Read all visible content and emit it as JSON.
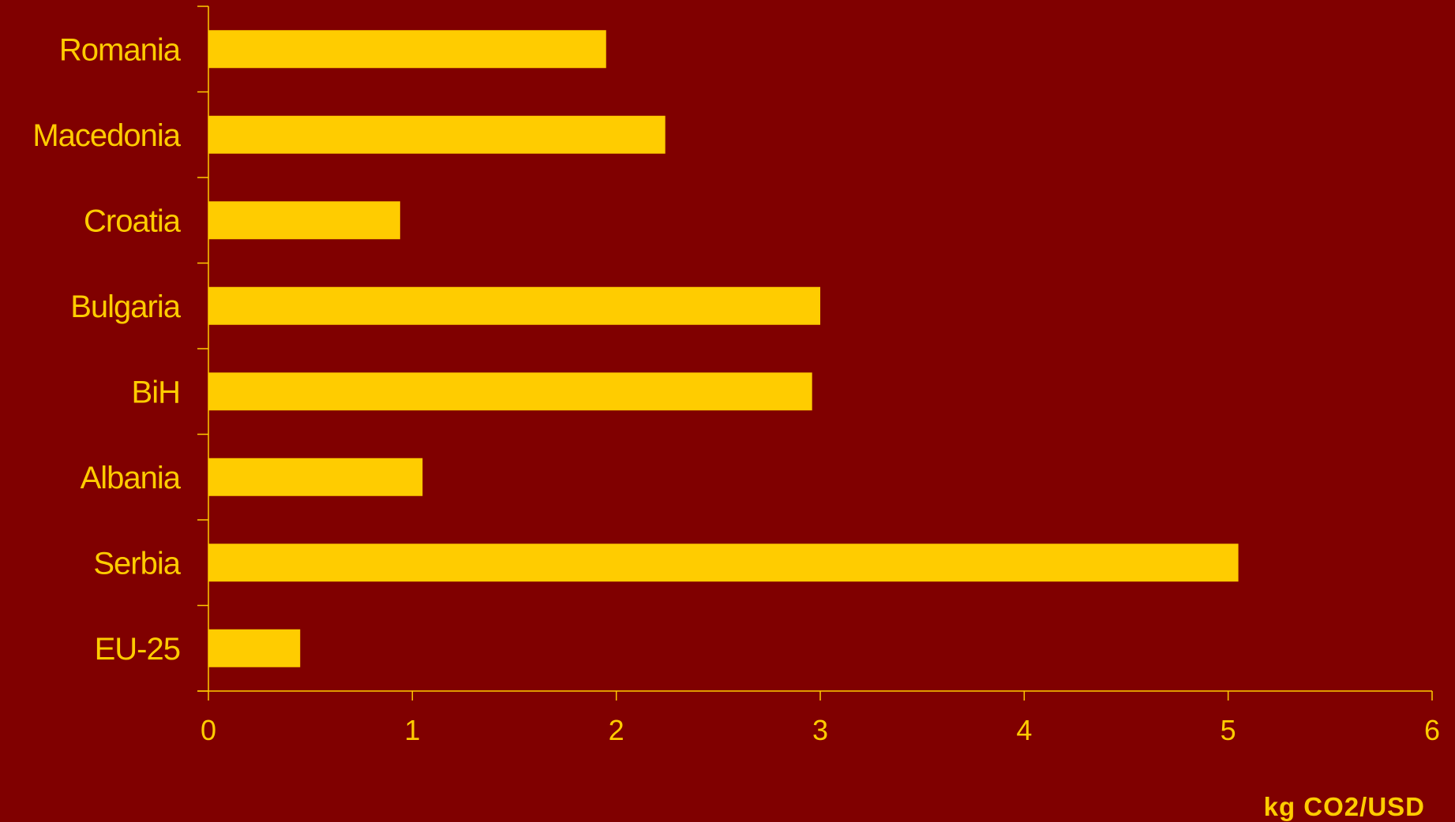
{
  "colors": {
    "background": "#800000",
    "bar": "#FFCC00",
    "text": "#FFCC00",
    "axis": "#FFCC00"
  },
  "chart_data": {
    "type": "bar",
    "orientation": "horizontal",
    "categories": [
      "Romania",
      "Macedonia",
      "Croatia",
      "Bulgaria",
      "BiH",
      "Albania",
      "Serbia",
      "EU-25"
    ],
    "values": [
      1.95,
      2.24,
      0.94,
      3.0,
      2.96,
      1.05,
      5.05,
      0.45
    ],
    "title": "",
    "xlabel": "kg CO2/USD",
    "ylabel": "",
    "xlim": [
      0,
      6
    ],
    "xticks": [
      "0",
      "1",
      "2",
      "3",
      "4",
      "5",
      "6"
    ],
    "grid": false,
    "legend": "none"
  }
}
